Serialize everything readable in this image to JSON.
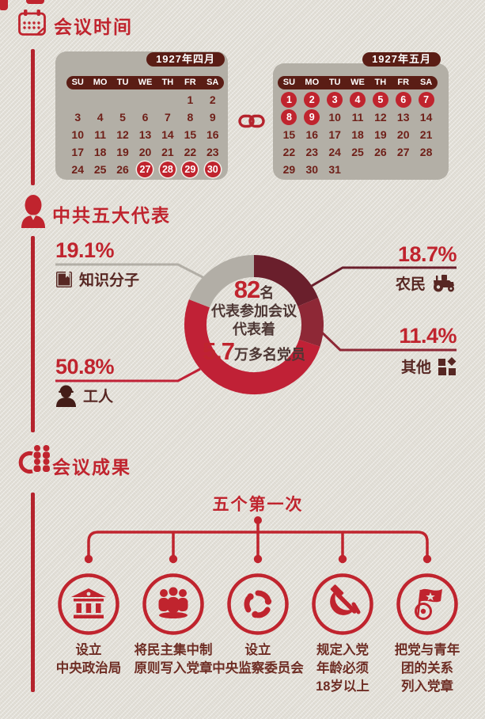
{
  "colors": {
    "background": "#e1ded6",
    "accent_red": "#c0242e",
    "line_red": "#b5232d",
    "hl_red": "#c0242e",
    "calendar_panel": "#b3afa6",
    "calendar_header": "#5a1d15",
    "date_text": "#6f2019",
    "label_text": "#572723",
    "center_text": "#4d3734",
    "outcome_text": "#6e2d24",
    "segment_farmer": "#6a1f2c",
    "segment_other": "#8e2836",
    "segment_worker": "#c02136",
    "segment_intellectual": "#b2aea6"
  },
  "sections": {
    "time": {
      "title": "会议时间"
    },
    "delegates": {
      "title": "中共五大代表"
    },
    "outcomes": {
      "title": "会议成果"
    }
  },
  "calendars": [
    {
      "title": "1927年四月",
      "weekdays": [
        "SU",
        "MO",
        "TU",
        "WE",
        "TH",
        "FR",
        "SA"
      ],
      "weeks": [
        [
          "",
          "",
          "",
          "",
          "",
          "1",
          "2"
        ],
        [
          "3",
          "4",
          "5",
          "6",
          "7",
          "8",
          "9"
        ],
        [
          "10",
          "11",
          "12",
          "13",
          "14",
          "15",
          "16"
        ],
        [
          "17",
          "18",
          "19",
          "20",
          "21",
          "22",
          "23"
        ],
        [
          "24",
          "25",
          "26",
          "27",
          "28",
          "29",
          "30"
        ]
      ],
      "highlights": [
        "27",
        "28",
        "29",
        "30"
      ]
    },
    {
      "title": "1927年五月",
      "weekdays": [
        "SU",
        "MO",
        "TU",
        "WE",
        "TH",
        "FR",
        "SA"
      ],
      "weeks": [
        [
          "1",
          "2",
          "3",
          "4",
          "5",
          "6",
          "7"
        ],
        [
          "8",
          "9",
          "10",
          "11",
          "12",
          "13",
          "14"
        ],
        [
          "15",
          "16",
          "17",
          "18",
          "19",
          "20",
          "21"
        ],
        [
          "22",
          "23",
          "24",
          "25",
          "26",
          "27",
          "28"
        ],
        [
          "29",
          "30",
          "31",
          "",
          "",
          "",
          ""
        ]
      ],
      "highlights": [
        "1",
        "2",
        "3",
        "4",
        "5",
        "6",
        "7",
        "8",
        "9"
      ]
    }
  ],
  "chart_data": {
    "type": "pie",
    "variant": "donut",
    "title": "中共五大代表",
    "start_angle_deg_from_top_clockwise": 0,
    "series": [
      {
        "name": "农民",
        "value": 18.7,
        "pct": "18.7%",
        "color": "#6a1f2c",
        "icon": "tractor-icon",
        "label_side": "right"
      },
      {
        "name": "其他",
        "value": 11.4,
        "pct": "11.4%",
        "color": "#8e2836",
        "icon": "tiles-icon",
        "label_side": "right"
      },
      {
        "name": "工人",
        "value": 50.8,
        "pct": "50.8%",
        "color": "#c02136",
        "icon": "worker-icon",
        "label_side": "left"
      },
      {
        "name": "知识分子",
        "value": 19.1,
        "pct": "19.1%",
        "color": "#b2aea6",
        "icon": "book-icon",
        "label_side": "left"
      }
    ],
    "center_text": {
      "num1": "82",
      "suffix1": "名",
      "line2": "代表参加会议",
      "line3": "代表着",
      "num2": "5.7",
      "suffix2": "万多名党员"
    }
  },
  "outcomes": {
    "subtitle": "五个第一次",
    "items": [
      {
        "icon": "government-building-icon",
        "label": "设立\n中央政治局"
      },
      {
        "icon": "delegates-group-icon",
        "label": "将民主集中制\n原则写入党章"
      },
      {
        "icon": "supervision-cycle-icon",
        "label": "设立\n中央监察委员会"
      },
      {
        "icon": "hammer-sickle-icon",
        "label": "规定入党\n年龄必须\n18岁以上"
      },
      {
        "icon": "youth-league-flag-icon",
        "label": "把党与青年\n团的关系\n列入党章"
      }
    ]
  }
}
